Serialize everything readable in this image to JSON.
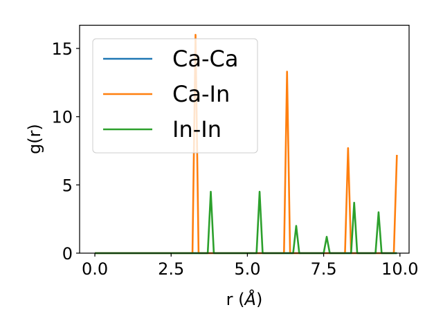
{
  "chart_data": {
    "type": "line",
    "xlabel_prefix": "r (",
    "xlabel_unit": "Å",
    "xlabel_suffix": ")",
    "ylabel": "g(r)",
    "xlim": [
      -0.5,
      10.3
    ],
    "ylim": [
      0,
      16.7
    ],
    "xticks": [
      0.0,
      2.5,
      5.0,
      7.5,
      10.0
    ],
    "xtick_labels": [
      "0.0",
      "2.5",
      "5.0",
      "7.5",
      "10.0"
    ],
    "yticks": [
      0,
      5,
      10,
      15
    ],
    "ytick_labels": [
      "0",
      "5",
      "10",
      "15"
    ],
    "grid": false,
    "legend_position": "upper-left",
    "series": [
      {
        "name": "Ca-Ca",
        "color": "#1f77b4",
        "x": [
          0.0,
          9.9
        ],
        "y": [
          0,
          0
        ]
      },
      {
        "name": "Ca-In",
        "color": "#ff7f0e",
        "x": [
          0.0,
          3.2,
          3.3,
          3.4,
          6.2,
          6.3,
          6.4,
          8.2,
          8.3,
          8.4,
          9.8,
          9.9
        ],
        "y": [
          0,
          0,
          16.0,
          0,
          0,
          13.3,
          0,
          0,
          7.7,
          0,
          0,
          7.2
        ]
      },
      {
        "name": "In-In",
        "color": "#2ca02c",
        "x": [
          0.0,
          3.7,
          3.8,
          3.9,
          5.3,
          5.4,
          5.5,
          6.5,
          6.6,
          6.7,
          7.5,
          7.6,
          7.7,
          8.4,
          8.5,
          8.6,
          9.2,
          9.3,
          9.4,
          9.9
        ],
        "y": [
          0,
          0,
          4.5,
          0,
          0,
          4.5,
          0,
          0,
          2.0,
          0,
          0,
          1.2,
          0,
          0,
          3.7,
          0,
          0,
          3.0,
          0,
          0
        ]
      }
    ]
  }
}
